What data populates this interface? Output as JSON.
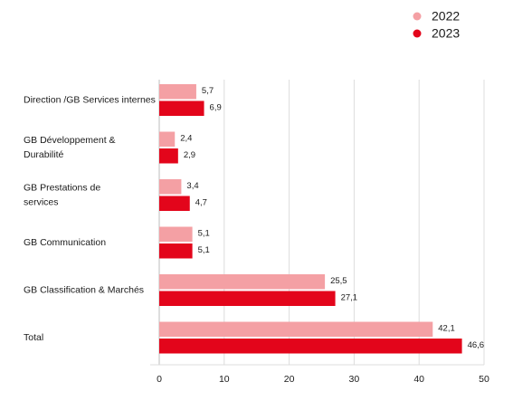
{
  "chart_data": {
    "type": "bar",
    "orientation": "horizontal",
    "categories": [
      [
        "Direction /GB Services internes"
      ],
      [
        "GB Développement &",
        "Durabilité"
      ],
      [
        "GB Prestations de",
        "services"
      ],
      [
        "GB Communication"
      ],
      [
        "GB Classification & Marchés"
      ],
      [
        "Total"
      ]
    ],
    "series": [
      {
        "name": "2022",
        "color": "#f4a0a4",
        "values": [
          5.7,
          2.4,
          3.4,
          5.1,
          25.5,
          42.1
        ],
        "labels": [
          "5,7",
          "2,4",
          "3,4",
          "5,1",
          "25,5",
          "42,1"
        ]
      },
      {
        "name": "2023",
        "color": "#e3051b",
        "values": [
          6.9,
          2.9,
          4.7,
          5.1,
          27.1,
          46.6
        ],
        "labels": [
          "6,9",
          "2,9",
          "4,7",
          "5,1",
          "27,1",
          "46,6"
        ]
      }
    ],
    "xlim": [
      0,
      50
    ],
    "xticks": [
      0,
      10,
      20,
      30,
      40,
      50
    ],
    "grid": true,
    "legend_position": "top-right"
  }
}
